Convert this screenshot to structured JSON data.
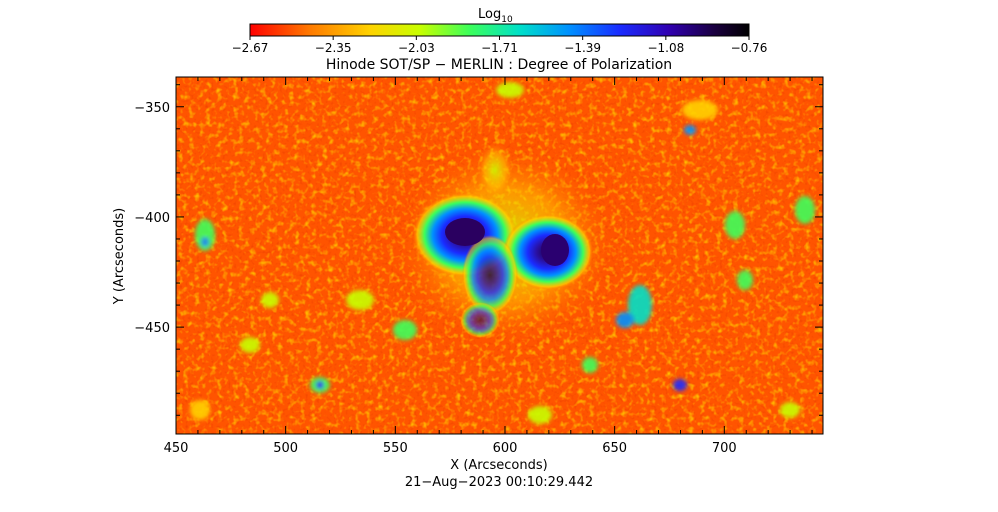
{
  "colorbar": {
    "label": "Log",
    "label_subscript": "10",
    "ticks": [
      "-2.67",
      "-2.35",
      "-2.03",
      "-1.71",
      "-1.39",
      "-1.08",
      "-0.76"
    ],
    "colors": [
      "#ff0000",
      "#ff7a00",
      "#ffd200",
      "#c8ff00",
      "#3cff5a",
      "#00e0c8",
      "#0090ff",
      "#1a2cff",
      "#3000b0",
      "#1a0040",
      "#000000"
    ]
  },
  "title": "Hinode SOT/SP − MERLIN : Degree of Polarization",
  "xaxis": {
    "label": "X (Arcseconds)",
    "ticks": [
      "450",
      "500",
      "550",
      "600",
      "650",
      "700"
    ]
  },
  "yaxis": {
    "label": "Y (Arcseconds)",
    "ticks": [
      "−350",
      "−400",
      "−450"
    ]
  },
  "timestamp": "21−Aug−2023 00:10:29.442"
}
